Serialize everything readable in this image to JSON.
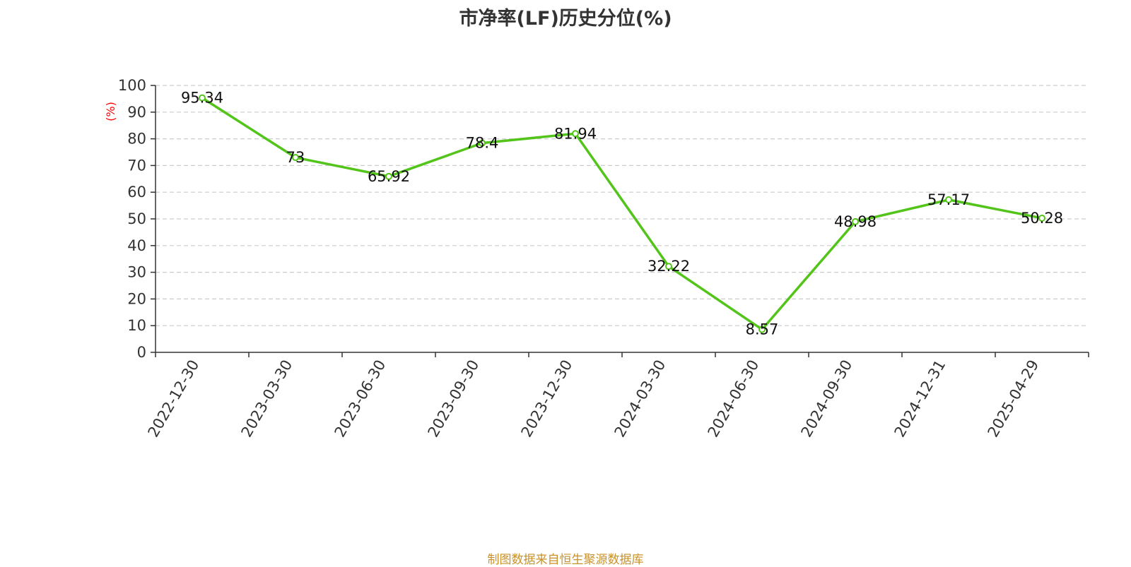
{
  "title": "市净率(LF)历史分位(%)",
  "footer": "制图数据来自恒生聚源数据库",
  "colors": {
    "line": "#52c41a",
    "ylabel": "#ff0000",
    "grid": "#cccccc",
    "axis": "#333333"
  },
  "chart_data": {
    "type": "line",
    "title": "市净率(LF)历史分位(%)",
    "xlabel": "",
    "ylabel": "(%)",
    "ylim": [
      0,
      100
    ],
    "yticks": [
      0,
      10,
      20,
      30,
      40,
      50,
      60,
      70,
      80,
      90,
      100
    ],
    "grid": true,
    "categories": [
      "2022-12-30",
      "2023-03-30",
      "2023-06-30",
      "2023-09-30",
      "2023-12-30",
      "2024-03-30",
      "2024-06-30",
      "2024-09-30",
      "2024-12-31",
      "2025-04-29"
    ],
    "series": [
      {
        "values": [
          95.34,
          73,
          65.92,
          78.4,
          81.94,
          32.22,
          8.57,
          48.98,
          57.17,
          50.28
        ],
        "labels": [
          "95.34",
          "73",
          "65.92",
          "78.4",
          "81.94",
          "32.22",
          "8.57",
          "48.98",
          "57.17",
          "50.28"
        ]
      }
    ]
  }
}
